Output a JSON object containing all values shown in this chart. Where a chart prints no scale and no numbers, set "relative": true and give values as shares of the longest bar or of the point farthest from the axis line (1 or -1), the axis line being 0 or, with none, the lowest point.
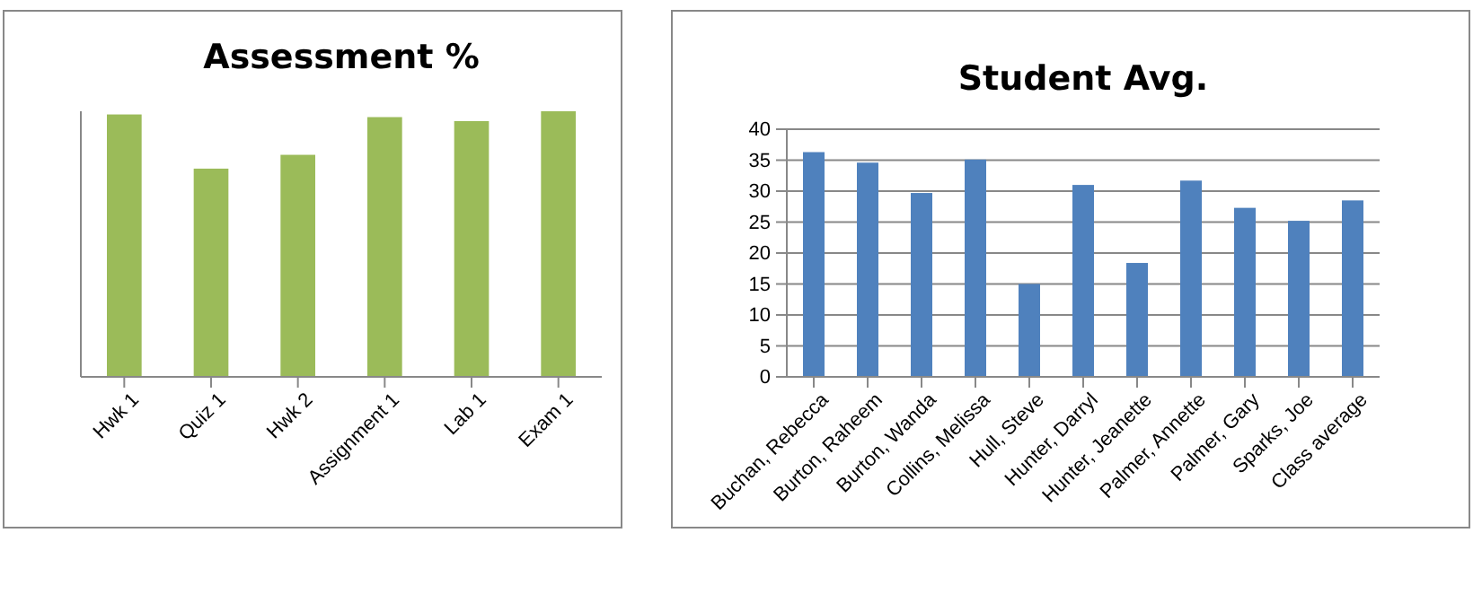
{
  "chart_data": [
    {
      "type": "bar",
      "title": "Assessment %",
      "categories": [
        "Hwk 1",
        "Quiz 1",
        "Hwk 2",
        "Assignment 1",
        "Lab 1",
        "Exam 1"
      ],
      "values": [
        0.988,
        0.784,
        0.836,
        0.978,
        0.963,
        1
      ],
      "color": "#9bbb59",
      "relative": true
    },
    {
      "type": "bar",
      "title": "Student Avg.",
      "categories": [
        "Buchan, Rebecca",
        "Burton, Raheem",
        "Burton, Wanda",
        "Collins, Melissa",
        "Hull, Steve",
        "Hunter, Darryl",
        "Hunter, Jeanette",
        "Palmer, Annette",
        "Palmer, Gary",
        "Sparks, Joe",
        "Class average"
      ],
      "values": [
        36.3,
        34.6,
        29.7,
        35.1,
        15.0,
        31.0,
        18.4,
        31.7,
        27.3,
        25.2,
        28.5
      ],
      "color": "#4f81bd",
      "ylim": [
        0,
        40
      ],
      "yticks": [
        0,
        5,
        10,
        15,
        20,
        25,
        30,
        35,
        40
      ],
      "grid": true
    }
  ]
}
